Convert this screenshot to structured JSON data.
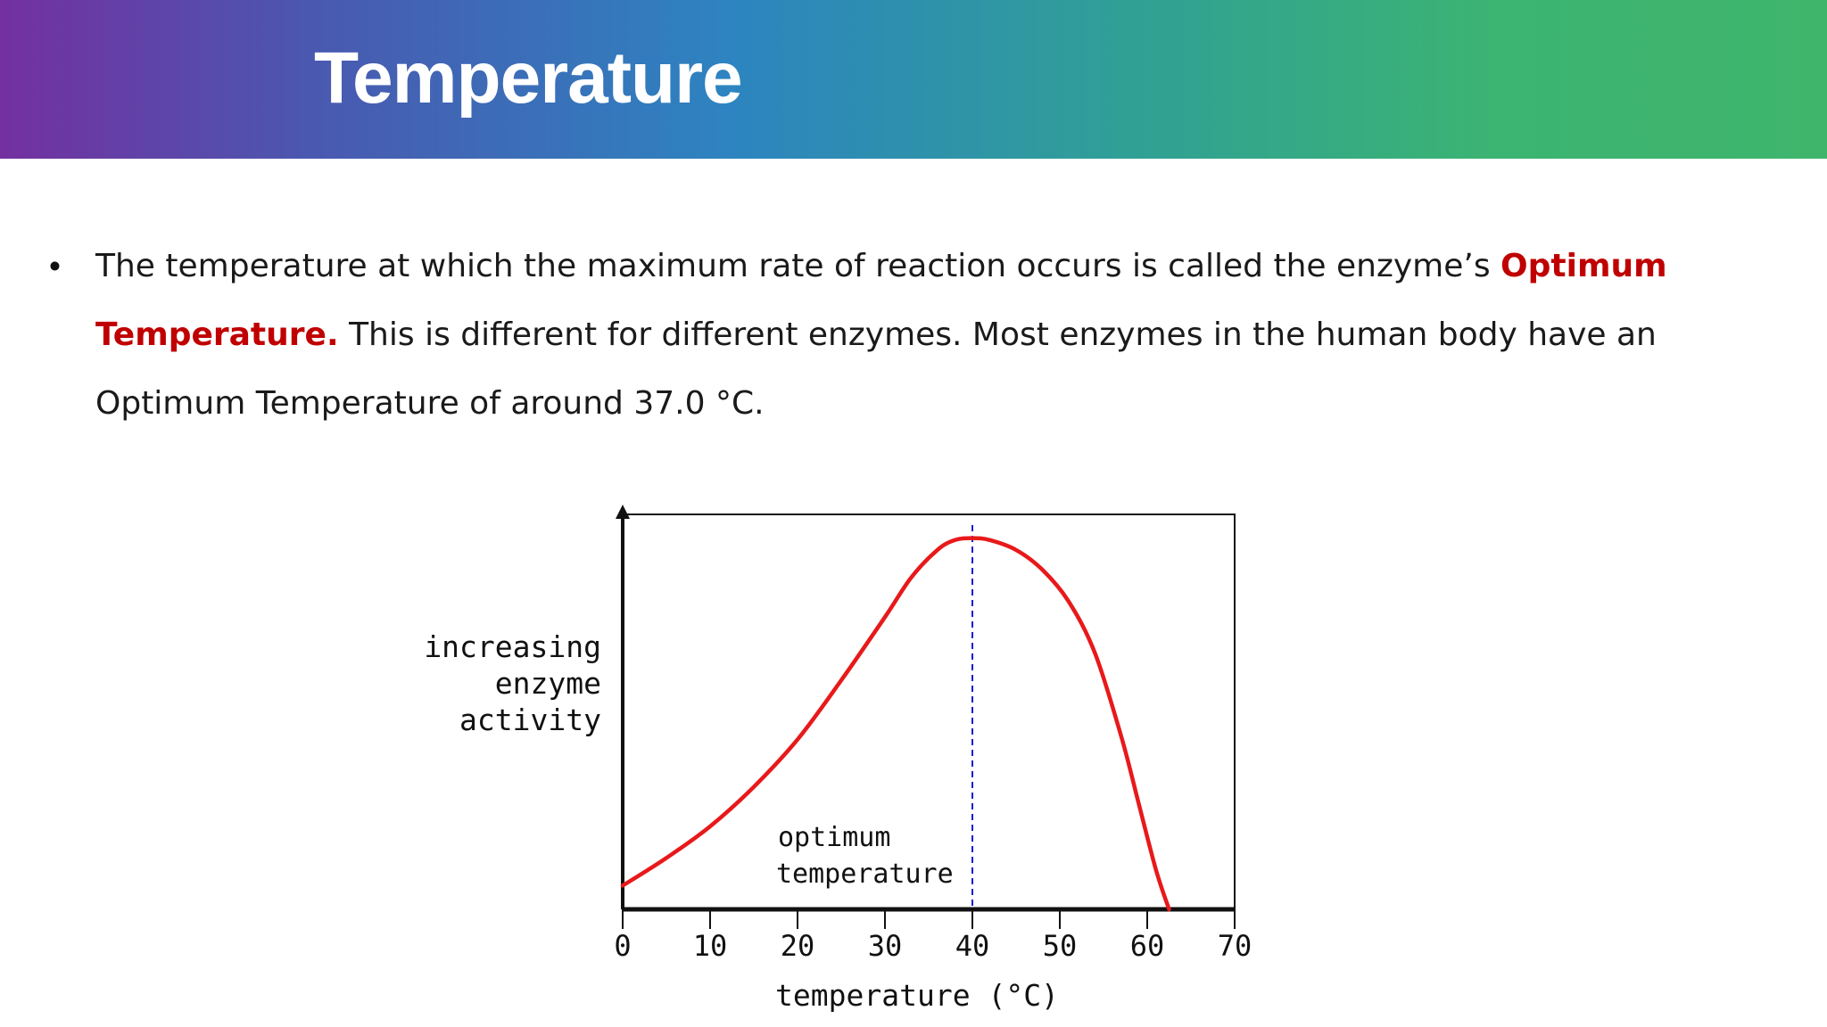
{
  "slide": {
    "title": "Temperature",
    "bullet": {
      "part1": "The temperature at which the maximum rate of reaction occurs is called the enzyme’s ",
      "highlight": "Optimum Temperature.",
      "part2": " This is different for different enzymes. Most enzymes in the human body have an Optimum Temperature of around 37.0 °C."
    },
    "colors": {
      "highlight": "#c00000",
      "banner_start": "#7430a0",
      "banner_end": "#3fb56c"
    }
  },
  "chart_data": {
    "type": "line",
    "xlabel": "temperature (°C)",
    "ylabel_lines": [
      "increasing",
      "enzyme",
      "activity"
    ],
    "xlim": [
      0,
      70
    ],
    "ylim": [
      0,
      1
    ],
    "x_ticks": [
      0,
      10,
      20,
      30,
      40,
      50,
      60,
      70
    ],
    "grid": false,
    "series": [
      {
        "color": "#e8191a",
        "x": [
          0,
          5,
          10,
          15,
          20,
          25,
          30,
          33,
          36,
          38,
          40,
          42,
          45,
          48,
          51,
          54,
          57,
          59,
          61,
          62.5
        ],
        "y": [
          0.06,
          0.13,
          0.21,
          0.31,
          0.43,
          0.58,
          0.74,
          0.84,
          0.91,
          0.935,
          0.94,
          0.935,
          0.91,
          0.86,
          0.78,
          0.65,
          0.44,
          0.27,
          0.1,
          0.0
        ]
      }
    ],
    "reference_line": {
      "x": 40,
      "color": "#1a1ad6",
      "style": "dashed"
    },
    "annotation": {
      "lines": [
        "optimum",
        "temperature"
      ],
      "x": 17.5,
      "y": 0.16
    }
  }
}
